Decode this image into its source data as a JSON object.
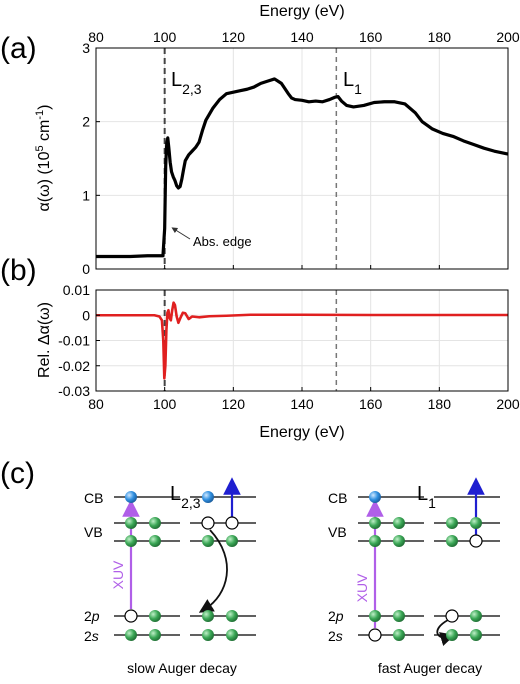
{
  "panels": {
    "a": "(a)",
    "b": "(b)",
    "c": "(c)"
  },
  "edge_labels": {
    "l23_main": "L",
    "l23_sub": "2,3",
    "l1_main": "L",
    "l1_sub": "1"
  },
  "chart_data": [
    {
      "type": "line",
      "panel": "a",
      "xlabel": "Energy (eV)",
      "ylabel_main": "α(ω) (10",
      "ylabel_sup": "5",
      "ylabel_mid": " cm",
      "ylabel_sup2": "-1",
      "ylabel_end": ")",
      "xlim": [
        80,
        200
      ],
      "ylim": [
        0,
        3
      ],
      "xticks": [
        80,
        100,
        120,
        140,
        160,
        180,
        200
      ],
      "yticks": [
        0,
        1,
        2,
        3
      ],
      "grid": true,
      "vlines": [
        100,
        150
      ],
      "annotation": "Abs. edge",
      "series": [
        {
          "color": "#000000",
          "x": [
            80,
            85,
            90,
            95,
            99.5,
            100,
            100.3,
            100.6,
            100.9,
            101.2,
            101.6,
            102,
            102.5,
            103,
            103.5,
            104,
            104.5,
            105,
            105.5,
            106,
            107,
            108,
            109,
            110,
            111,
            112,
            114,
            116,
            118,
            120,
            122,
            124,
            126,
            128,
            130,
            132,
            134,
            136,
            137,
            138,
            140,
            142,
            144,
            146,
            148,
            149.5,
            150.5,
            151.5,
            153,
            155,
            158,
            161,
            164,
            167,
            170,
            173,
            175,
            178,
            181,
            184,
            187,
            190,
            193,
            196,
            200
          ],
          "y": [
            0.17,
            0.17,
            0.17,
            0.18,
            0.18,
            0.55,
            1.4,
            1.7,
            1.78,
            1.65,
            1.45,
            1.32,
            1.25,
            1.2,
            1.13,
            1.1,
            1.12,
            1.22,
            1.35,
            1.47,
            1.55,
            1.6,
            1.65,
            1.72,
            1.88,
            2.02,
            2.18,
            2.3,
            2.38,
            2.4,
            2.42,
            2.44,
            2.47,
            2.52,
            2.55,
            2.58,
            2.52,
            2.38,
            2.32,
            2.3,
            2.29,
            2.27,
            2.28,
            2.27,
            2.3,
            2.33,
            2.34,
            2.28,
            2.22,
            2.2,
            2.22,
            2.26,
            2.27,
            2.27,
            2.24,
            2.12,
            2.0,
            1.9,
            1.84,
            1.8,
            1.74,
            1.69,
            1.64,
            1.6,
            1.56
          ]
        }
      ]
    },
    {
      "type": "line",
      "panel": "b",
      "xlabel": "Energy (eV)",
      "ylabel": "Rel. Δα(ω)",
      "xlim": [
        80,
        200
      ],
      "ylim": [
        -0.03,
        0.01
      ],
      "xticks": [
        80,
        100,
        120,
        140,
        160,
        180,
        200
      ],
      "yticks": [
        "0.01",
        "0",
        "-0.01",
        "-0.02",
        "-0.03"
      ],
      "ytick_values": [
        0.01,
        0,
        -0.01,
        -0.02,
        -0.03
      ],
      "grid": true,
      "vlines": [
        100,
        150
      ],
      "series": [
        {
          "color": "#e02020",
          "x": [
            80,
            90,
            97,
            98.5,
            99.2,
            99.6,
            99.9,
            100.2,
            100.5,
            100.8,
            101.1,
            101.4,
            101.8,
            102.2,
            102.6,
            103,
            103.5,
            104,
            104.6,
            105.3,
            106,
            107,
            108,
            110,
            113,
            118,
            125,
            140,
            160,
            180,
            200
          ],
          "y": [
            0,
            0,
            0,
            -0.0005,
            -0.002,
            -0.01,
            -0.025,
            -0.02,
            -0.006,
            0.001,
            0.002,
            -0.001,
            -0.002,
            0.002,
            0.005,
            0.004,
            -0.0005,
            -0.003,
            -0.001,
            0.001,
            0.0008,
            -0.0015,
            -0.0005,
            -0.0008,
            -0.0004,
            -0.0002,
            0.0002,
            0.0002,
            0.0001,
            0.0001,
            0.0001
          ]
        }
      ]
    }
  ],
  "diagram": {
    "left_title_main": "L",
    "left_title_sub": "2,3",
    "right_title_main": "L",
    "right_title_sub": "1",
    "levels": [
      "CB",
      "VB",
      "2p",
      "2s"
    ],
    "level_italic_2p": "p",
    "level_italic_2s": "s",
    "xuv": "XUV",
    "left_caption": "slow Auger decay",
    "right_caption": "fast Auger decay",
    "colors": {
      "electron_green": "#3aa655",
      "electron_blue": "#2f8fe0",
      "xuv_arrow": "#b05fe8",
      "auger_arrow": "#1f1fd0"
    }
  }
}
